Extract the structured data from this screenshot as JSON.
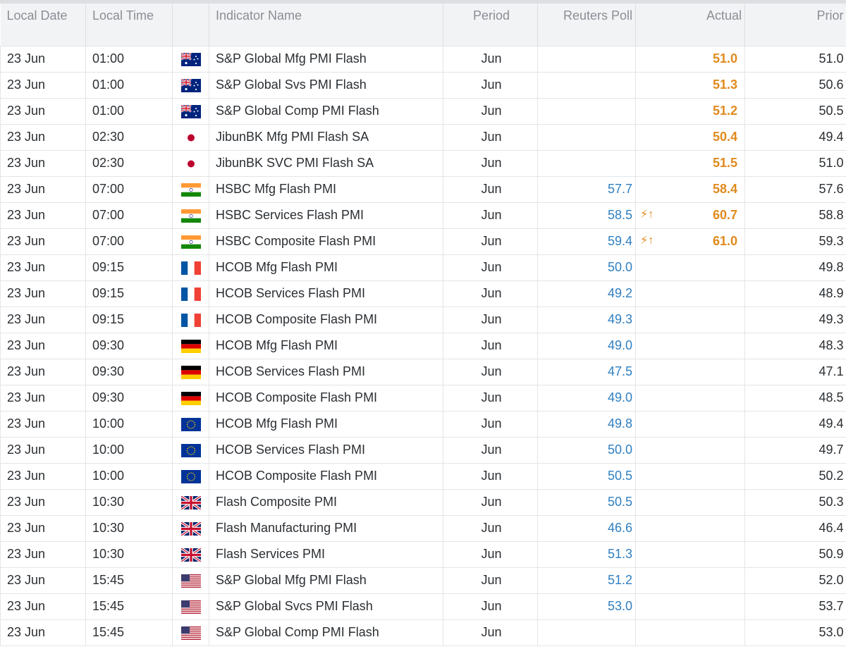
{
  "table": {
    "headers": {
      "local_date": "Local Date",
      "local_time": "Local Time",
      "flag": "",
      "indicator_name": "Indicator Name",
      "period": "Period",
      "reuters_poll": "Reuters Poll",
      "actual": "Actual",
      "prior": "Prior"
    },
    "rows": [
      {
        "date": "23 Jun",
        "time": "01:00",
        "flag": "australia-flag-icon",
        "name": "S&P Global Mfg PMI Flash",
        "period": "Jun",
        "poll": "",
        "actual": "51.0",
        "surprise": "",
        "prior": "51.0"
      },
      {
        "date": "23 Jun",
        "time": "01:00",
        "flag": "australia-flag-icon",
        "name": "S&P Global Svs PMI Flash",
        "period": "Jun",
        "poll": "",
        "actual": "51.3",
        "surprise": "",
        "prior": "50.6"
      },
      {
        "date": "23 Jun",
        "time": "01:00",
        "flag": "australia-flag-icon",
        "name": "S&P Global Comp PMI Flash",
        "period": "Jun",
        "poll": "",
        "actual": "51.2",
        "surprise": "",
        "prior": "50.5"
      },
      {
        "date": "23 Jun",
        "time": "02:30",
        "flag": "japan-flag-icon",
        "name": "JibunBK Mfg PMI Flash SA",
        "period": "Jun",
        "poll": "",
        "actual": "50.4",
        "surprise": "",
        "prior": "49.4"
      },
      {
        "date": "23 Jun",
        "time": "02:30",
        "flag": "japan-flag-icon",
        "name": "JibunBK SVC PMI Flash SA",
        "period": "Jun",
        "poll": "",
        "actual": "51.5",
        "surprise": "",
        "prior": "51.0"
      },
      {
        "date": "23 Jun",
        "time": "07:00",
        "flag": "india-flag-icon",
        "name": "HSBC Mfg Flash PMI",
        "period": "Jun",
        "poll": "57.7",
        "actual": "58.4",
        "surprise": "",
        "prior": "57.6"
      },
      {
        "date": "23 Jun",
        "time": "07:00",
        "flag": "india-flag-icon",
        "name": "HSBC Services Flash PMI",
        "period": "Jun",
        "poll": "58.5",
        "actual": "60.7",
        "surprise": "⚡↑",
        "prior": "58.8"
      },
      {
        "date": "23 Jun",
        "time": "07:00",
        "flag": "india-flag-icon",
        "name": "HSBC Composite Flash PMI",
        "period": "Jun",
        "poll": "59.4",
        "actual": "61.0",
        "surprise": "⚡↑",
        "prior": "59.3"
      },
      {
        "date": "23 Jun",
        "time": "09:15",
        "flag": "france-flag-icon",
        "name": "HCOB Mfg Flash PMI",
        "period": "Jun",
        "poll": "50.0",
        "actual": "",
        "surprise": "",
        "prior": "49.8"
      },
      {
        "date": "23 Jun",
        "time": "09:15",
        "flag": "france-flag-icon",
        "name": "HCOB Services Flash PMI",
        "period": "Jun",
        "poll": "49.2",
        "actual": "",
        "surprise": "",
        "prior": "48.9"
      },
      {
        "date": "23 Jun",
        "time": "09:15",
        "flag": "france-flag-icon",
        "name": "HCOB Composite Flash PMI",
        "period": "Jun",
        "poll": "49.3",
        "actual": "",
        "surprise": "",
        "prior": "49.3"
      },
      {
        "date": "23 Jun",
        "time": "09:30",
        "flag": "germany-flag-icon",
        "name": "HCOB Mfg Flash PMI",
        "period": "Jun",
        "poll": "49.0",
        "actual": "",
        "surprise": "",
        "prior": "48.3"
      },
      {
        "date": "23 Jun",
        "time": "09:30",
        "flag": "germany-flag-icon",
        "name": "HCOB Services Flash PMI",
        "period": "Jun",
        "poll": "47.5",
        "actual": "",
        "surprise": "",
        "prior": "47.1"
      },
      {
        "date": "23 Jun",
        "time": "09:30",
        "flag": "germany-flag-icon",
        "name": "HCOB Composite Flash PMI",
        "period": "Jun",
        "poll": "49.0",
        "actual": "",
        "surprise": "",
        "prior": "48.5"
      },
      {
        "date": "23 Jun",
        "time": "10:00",
        "flag": "eu-flag-icon",
        "name": "HCOB Mfg Flash PMI",
        "period": "Jun",
        "poll": "49.8",
        "actual": "",
        "surprise": "",
        "prior": "49.4"
      },
      {
        "date": "23 Jun",
        "time": "10:00",
        "flag": "eu-flag-icon",
        "name": "HCOB Services Flash PMI",
        "period": "Jun",
        "poll": "50.0",
        "actual": "",
        "surprise": "",
        "prior": "49.7"
      },
      {
        "date": "23 Jun",
        "time": "10:00",
        "flag": "eu-flag-icon",
        "name": "HCOB Composite Flash PMI",
        "period": "Jun",
        "poll": "50.5",
        "actual": "",
        "surprise": "",
        "prior": "50.2"
      },
      {
        "date": "23 Jun",
        "time": "10:30",
        "flag": "uk-flag-icon",
        "name": "Flash Composite PMI",
        "period": "Jun",
        "poll": "50.5",
        "actual": "",
        "surprise": "",
        "prior": "50.3"
      },
      {
        "date": "23 Jun",
        "time": "10:30",
        "flag": "uk-flag-icon",
        "name": "Flash Manufacturing PMI",
        "period": "Jun",
        "poll": "46.6",
        "actual": "",
        "surprise": "",
        "prior": "46.4"
      },
      {
        "date": "23 Jun",
        "time": "10:30",
        "flag": "uk-flag-icon",
        "name": "Flash Services PMI",
        "period": "Jun",
        "poll": "51.3",
        "actual": "",
        "surprise": "",
        "prior": "50.9"
      },
      {
        "date": "23 Jun",
        "time": "15:45",
        "flag": "us-flag-icon",
        "name": "S&P Global Mfg PMI Flash",
        "period": "Jun",
        "poll": "51.2",
        "actual": "",
        "surprise": "",
        "prior": "52.0"
      },
      {
        "date": "23 Jun",
        "time": "15:45",
        "flag": "us-flag-icon",
        "name": "S&P Global Svcs PMI Flash",
        "period": "Jun",
        "poll": "53.0",
        "actual": "",
        "surprise": "",
        "prior": "53.7"
      },
      {
        "date": "23 Jun",
        "time": "15:45",
        "flag": "us-flag-icon",
        "name": "S&P Global Comp PMI Flash",
        "period": "Jun",
        "poll": "",
        "actual": "",
        "surprise": "",
        "prior": "53.0"
      }
    ]
  },
  "colors": {
    "poll": "#2f7fc1",
    "actual": "#e08a1e",
    "header_bg": "#f2f3f5",
    "header_text": "#8a8e94",
    "grid": "#e3e5e8"
  }
}
